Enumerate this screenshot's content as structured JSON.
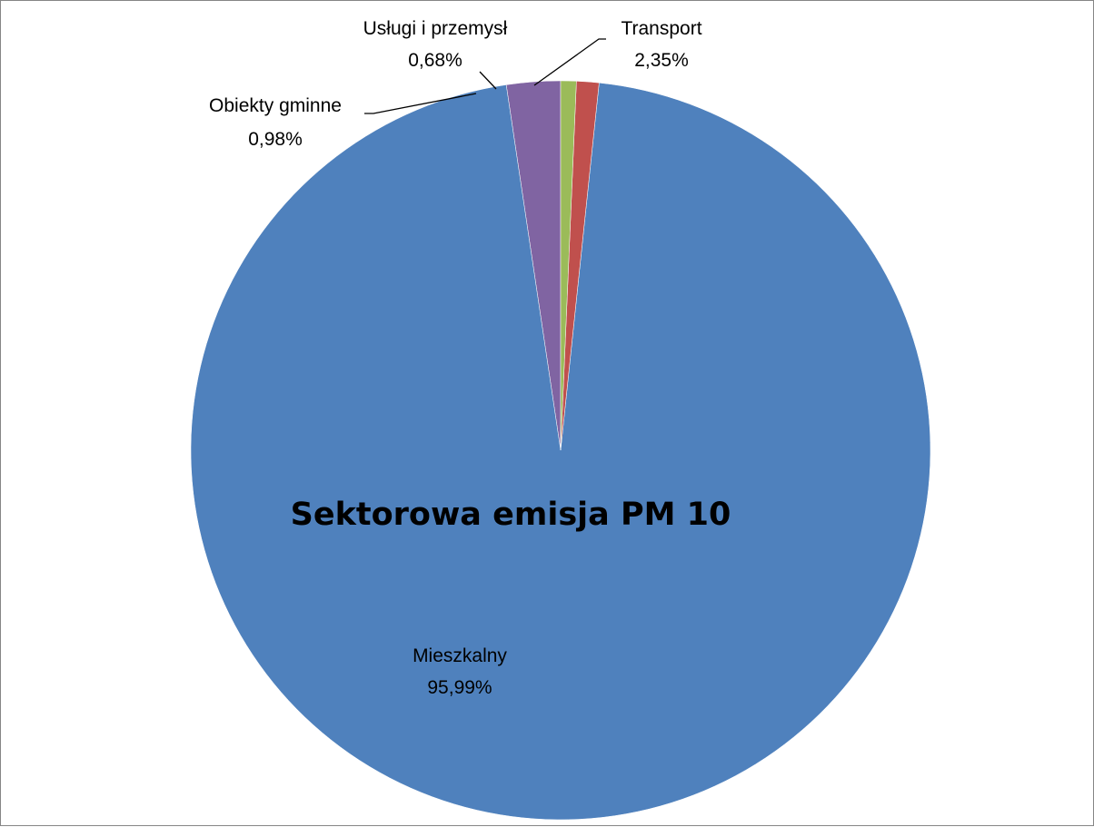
{
  "chart_data": {
    "type": "pie",
    "title": "Sektorowa emisja PM 10",
    "slices": [
      {
        "name": "Transport",
        "value": 2.35,
        "label": "2,35%",
        "color": "#8064A2"
      },
      {
        "name": "Mieszkalny",
        "value": 95.99,
        "label": "95,99%",
        "color": "#4F81BD"
      },
      {
        "name": "Obiekty gminne",
        "value": 0.98,
        "label": "0,98%",
        "color": "#C0504D"
      },
      {
        "name": "Usługi i przemysł",
        "value": 0.68,
        "label": "0,68%",
        "color": "#9BBB59"
      }
    ],
    "legend": "none",
    "start_angle_deg": 0,
    "direction": "counterclockwise"
  }
}
